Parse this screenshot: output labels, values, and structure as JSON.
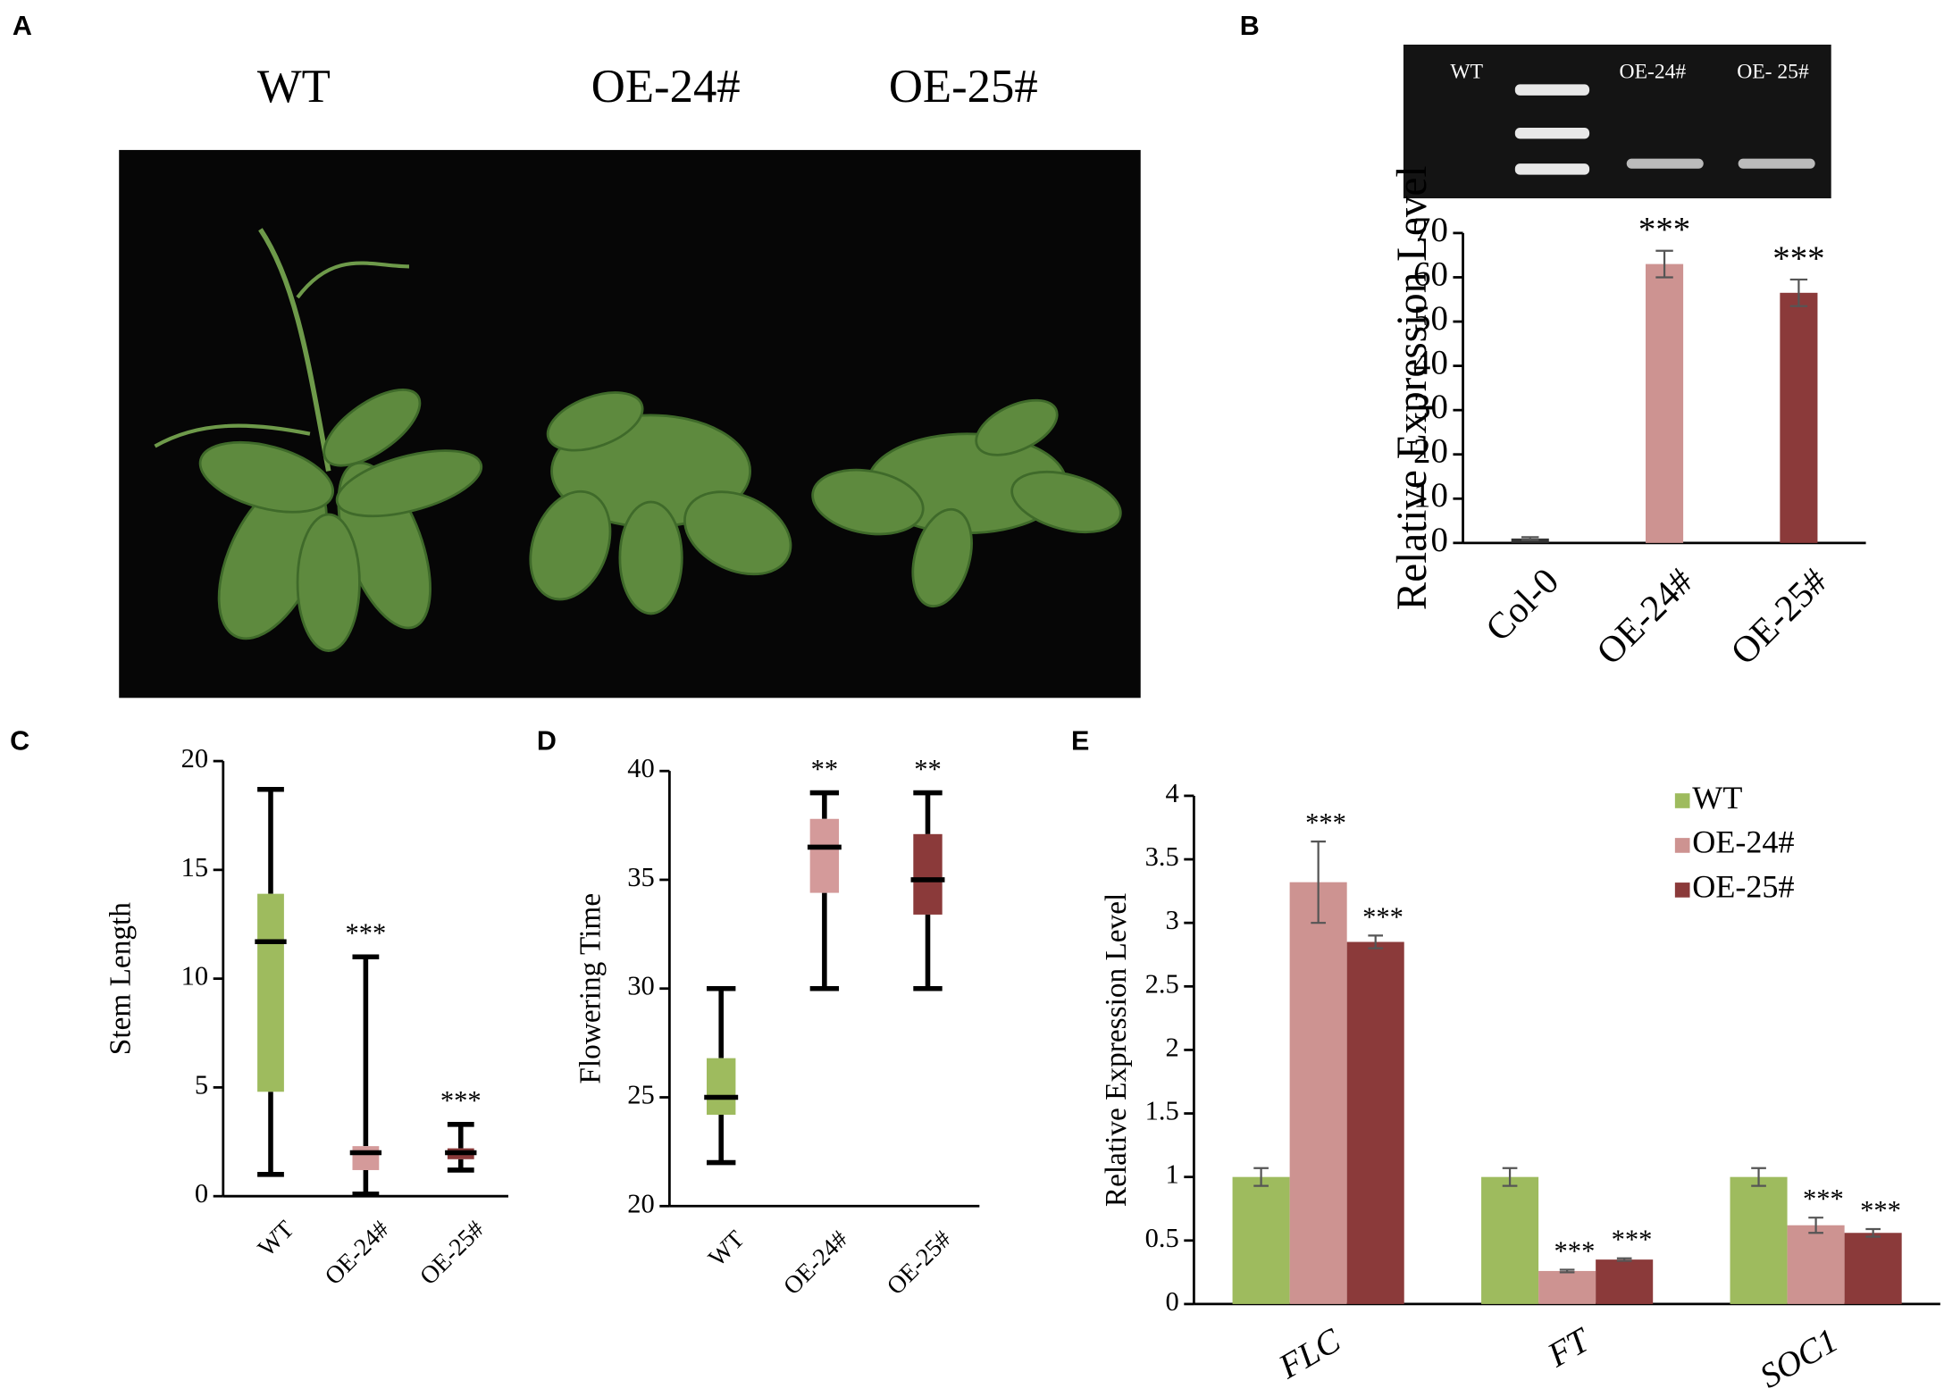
{
  "panels": [
    "A",
    "B",
    "C",
    "D",
    "E"
  ],
  "photo": {
    "labels": [
      "WT",
      "OE-24#",
      "OE-25#"
    ]
  },
  "gel": {
    "labels": [
      "WT",
      "OE-24#",
      "OE- 25#"
    ]
  },
  "chart_data": [
    {
      "type": "bar",
      "y_label": "Relative Expression Level",
      "categories": [
        "Col-0",
        "OE-24#",
        "OE-25#"
      ],
      "values": [
        1,
        63,
        56.5
      ],
      "errors": [
        0.3,
        3,
        3
      ],
      "colors": [
        "#333333",
        "#cd9391",
        "#8b3a3a"
      ],
      "significance": [
        null,
        "***",
        "***"
      ],
      "ylim": [
        0,
        70
      ],
      "yticks": [
        0,
        10,
        20,
        30,
        40,
        50,
        60,
        70
      ]
    },
    {
      "type": "box",
      "y_label": "Stem Length",
      "categories": [
        "WT",
        "OE-24#",
        "OE-25#"
      ],
      "colors": [
        "#9ebb5e",
        "#d49a9a",
        "#8b3a3a"
      ],
      "boxes": [
        {
          "min": 1,
          "q1": 4.8,
          "median": 11.7,
          "q3": 13.9,
          "max": 18.7
        },
        {
          "min": 0.1,
          "q1": 1.2,
          "median": 2,
          "q3": 2.3,
          "max": 11
        },
        {
          "min": 1.2,
          "q1": 1.7,
          "median": 2,
          "q3": 2.2,
          "max": 3.3
        }
      ],
      "significance": [
        null,
        "***",
        "***"
      ],
      "ylim": [
        0,
        20
      ],
      "yticks": [
        0,
        5,
        10,
        15,
        20
      ]
    },
    {
      "type": "box",
      "y_label": "Flowering Time",
      "categories": [
        "WT",
        "OE-24#",
        "OE-25#"
      ],
      "colors": [
        "#9ebb5e",
        "#d49a9a",
        "#8b3a3a"
      ],
      "boxes": [
        {
          "min": 22,
          "q1": 24.2,
          "median": 25,
          "q3": 26.8,
          "max": 30
        },
        {
          "min": 30,
          "q1": 34.4,
          "median": 36.5,
          "q3": 37.8,
          "max": 39
        },
        {
          "min": 30,
          "q1": 33.4,
          "median": 35,
          "q3": 37.1,
          "max": 39
        }
      ],
      "significance": [
        null,
        "**",
        "**"
      ],
      "ylim": [
        20,
        40
      ],
      "yticks": [
        20,
        25,
        30,
        35,
        40
      ]
    },
    {
      "type": "bar",
      "y_label": "Relative Expression Level",
      "categories": [
        "FLC",
        "FT",
        "SOC1"
      ],
      "series": [
        {
          "name": "WT",
          "color": "#9ebb5e",
          "values": [
            1,
            1,
            1
          ],
          "errors": [
            0.07,
            0.07,
            0.07
          ],
          "significance": [
            null,
            null,
            null
          ]
        },
        {
          "name": "OE-24#",
          "color": "#cd9391",
          "values": [
            3.32,
            0.26,
            0.62
          ],
          "errors": [
            0.32,
            0.01,
            0.06
          ],
          "significance": [
            "***",
            "***",
            "***"
          ]
        },
        {
          "name": "OE-25#",
          "color": "#8b3a3a",
          "values": [
            2.85,
            0.35,
            0.56
          ],
          "errors": [
            0.05,
            0.01,
            0.03
          ],
          "significance": [
            "***",
            "***",
            "***"
          ]
        }
      ],
      "ylim": [
        0,
        4
      ],
      "yticks": [
        0,
        0.5,
        1,
        1.5,
        2,
        2.5,
        3,
        3.5,
        4
      ],
      "legend": "upper right"
    }
  ]
}
